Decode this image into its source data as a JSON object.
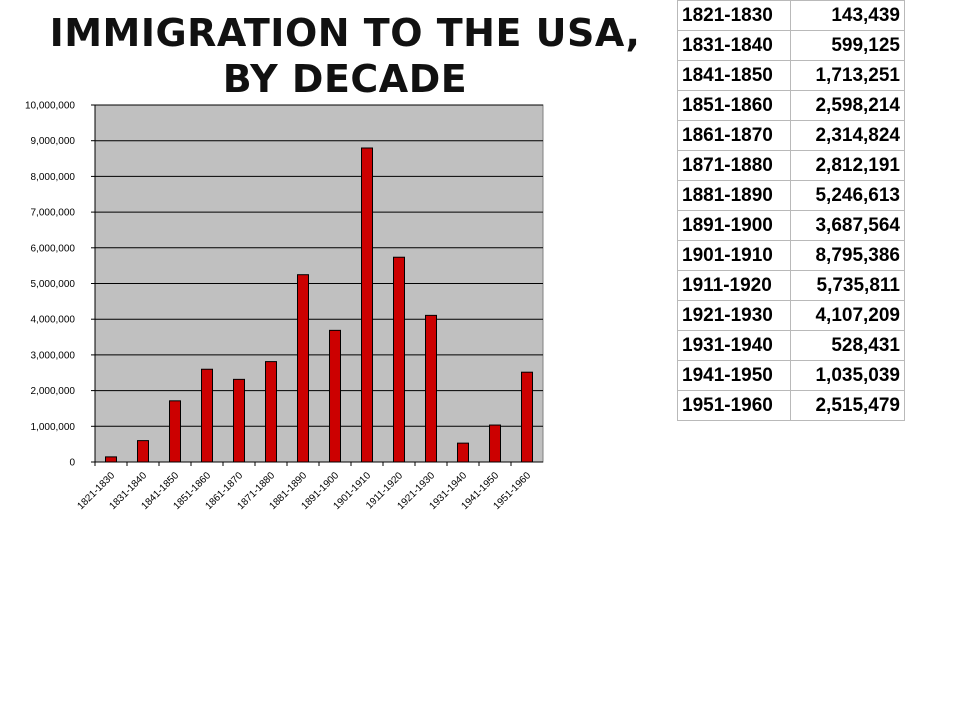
{
  "title": {
    "line1": "IMMIGRATION TO THE USA,",
    "line2": "BY DECADE"
  },
  "colors": {
    "bar": "#cc0000",
    "plot_bg": "#c0c0c0",
    "grid": "#000000"
  },
  "chart_data": {
    "type": "bar",
    "categories": [
      "1821-1830",
      "1831-1840",
      "1841-1850",
      "1851-1860",
      "1861-1870",
      "1871-1880",
      "1881-1890",
      "1891-1900",
      "1901-1910",
      "1911-1920",
      "1921-1930",
      "1931-1940",
      "1941-1950",
      "1951-1960"
    ],
    "values": [
      143439,
      599125,
      1713251,
      2598214,
      2314824,
      2812191,
      5246613,
      3687564,
      8795386,
      5735811,
      4107209,
      528431,
      1035039,
      2515479
    ],
    "ylim": [
      0,
      10000000
    ],
    "yticks": [
      0,
      1000000,
      2000000,
      3000000,
      4000000,
      5000000,
      6000000,
      7000000,
      8000000,
      9000000,
      10000000
    ],
    "ytick_labels": [
      "0",
      "1,000,000",
      "2,000,000",
      "3,000,000",
      "4,000,000",
      "5,000,000",
      "6,000,000",
      "7,000,000",
      "8,000,000",
      "9,000,000",
      "10,000,000"
    ],
    "grid": true,
    "title": "IMMIGRATION TO THE USA, BY DECADE"
  },
  "table": {
    "rows": [
      {
        "period": "1821-1830",
        "count": "143,439"
      },
      {
        "period": "1831-1840",
        "count": "599,125"
      },
      {
        "period": "1841-1850",
        "count": "1,713,251"
      },
      {
        "period": "1851-1860",
        "count": "2,598,214"
      },
      {
        "period": "1861-1870",
        "count": "2,314,824"
      },
      {
        "period": "1871-1880",
        "count": "2,812,191"
      },
      {
        "period": "1881-1890",
        "count": "5,246,613"
      },
      {
        "period": "1891-1900",
        "count": "3,687,564"
      },
      {
        "period": "1901-1910",
        "count": "8,795,386"
      },
      {
        "period": "1911-1920",
        "count": "5,735,811"
      },
      {
        "period": "1921-1930",
        "count": "4,107,209"
      },
      {
        "period": "1931-1940",
        "count": "528,431"
      },
      {
        "period": "1941-1950",
        "count": "1,035,039"
      },
      {
        "period": "1951-1960",
        "count": "2,515,479"
      }
    ]
  }
}
